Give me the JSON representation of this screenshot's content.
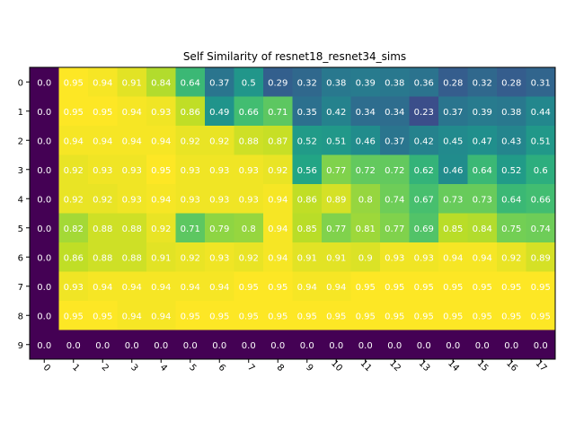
{
  "chart_data": {
    "type": "heatmap",
    "title": "Self Similarity of resnet18_resnet34_sims",
    "xlabel": "",
    "ylabel": "",
    "colormap": "viridis",
    "vmin": 0.0,
    "vmax": 0.95,
    "x_labels": [
      "0",
      "1",
      "2",
      "3",
      "4",
      "5",
      "6",
      "7",
      "8",
      "9",
      "10",
      "11",
      "12",
      "13",
      "14",
      "15",
      "16",
      "17"
    ],
    "y_labels": [
      "0",
      "1",
      "2",
      "3",
      "4",
      "5",
      "6",
      "7",
      "8",
      "9"
    ],
    "x_tick_rotation": 45,
    "grid": false,
    "values": [
      [
        0.0,
        0.95,
        0.94,
        0.91,
        0.84,
        0.64,
        0.37,
        0.5,
        0.29,
        0.32,
        0.38,
        0.39,
        0.38,
        0.36,
        0.28,
        0.32,
        0.28,
        0.31
      ],
      [
        0.0,
        0.95,
        0.95,
        0.94,
        0.93,
        0.86,
        0.49,
        0.66,
        0.71,
        0.35,
        0.42,
        0.34,
        0.34,
        0.23,
        0.37,
        0.39,
        0.38,
        0.44
      ],
      [
        0.0,
        0.94,
        0.94,
        0.94,
        0.94,
        0.92,
        0.92,
        0.88,
        0.87,
        0.52,
        0.51,
        0.46,
        0.37,
        0.42,
        0.45,
        0.47,
        0.43,
        0.51
      ],
      [
        0.0,
        0.92,
        0.93,
        0.93,
        0.95,
        0.93,
        0.93,
        0.93,
        0.92,
        0.56,
        0.77,
        0.72,
        0.72,
        0.62,
        0.46,
        0.64,
        0.52,
        0.6
      ],
      [
        0.0,
        0.92,
        0.92,
        0.93,
        0.94,
        0.93,
        0.93,
        0.93,
        0.94,
        0.86,
        0.89,
        0.8,
        0.74,
        0.67,
        0.73,
        0.73,
        0.64,
        0.66
      ],
      [
        0.0,
        0.82,
        0.88,
        0.88,
        0.92,
        0.71,
        0.79,
        0.8,
        0.94,
        0.85,
        0.77,
        0.81,
        0.77,
        0.69,
        0.85,
        0.84,
        0.75,
        0.74
      ],
      [
        0.0,
        0.86,
        0.88,
        0.88,
        0.91,
        0.92,
        0.93,
        0.92,
        0.94,
        0.91,
        0.91,
        0.9,
        0.93,
        0.93,
        0.94,
        0.94,
        0.92,
        0.89
      ],
      [
        0.0,
        0.93,
        0.94,
        0.94,
        0.94,
        0.94,
        0.94,
        0.95,
        0.95,
        0.94,
        0.94,
        0.95,
        0.95,
        0.95,
        0.95,
        0.95,
        0.95,
        0.95
      ],
      [
        0.0,
        0.95,
        0.95,
        0.94,
        0.94,
        0.95,
        0.95,
        0.95,
        0.95,
        0.95,
        0.95,
        0.95,
        0.95,
        0.95,
        0.95,
        0.95,
        0.95,
        0.95
      ],
      [
        0.0,
        0.0,
        0.0,
        0.0,
        0.0,
        0.0,
        0.0,
        0.0,
        0.0,
        0.0,
        0.0,
        0.0,
        0.0,
        0.0,
        0.0,
        0.0,
        0.0,
        0.0
      ]
    ],
    "cell_text": [
      [
        "0.0",
        "0.95",
        "0.94",
        "0.91",
        "0.84",
        "0.64",
        "0.37",
        "0.5",
        "0.29",
        "0.32",
        "0.38",
        "0.39",
        "0.38",
        "0.36",
        "0.28",
        "0.32",
        "0.28",
        "0.31"
      ],
      [
        "0.0",
        "0.95",
        "0.95",
        "0.94",
        "0.93",
        "0.86",
        "0.49",
        "0.66",
        "0.71",
        "0.35",
        "0.42",
        "0.34",
        "0.34",
        "0.23",
        "0.37",
        "0.39",
        "0.38",
        "0.44"
      ],
      [
        "0.0",
        "0.94",
        "0.94",
        "0.94",
        "0.94",
        "0.92",
        "0.92",
        "0.88",
        "0.87",
        "0.52",
        "0.51",
        "0.46",
        "0.37",
        "0.42",
        "0.45",
        "0.47",
        "0.43",
        "0.51"
      ],
      [
        "0.0",
        "0.92",
        "0.93",
        "0.93",
        "0.95",
        "0.93",
        "0.93",
        "0.93",
        "0.92",
        "0.56",
        "0.77",
        "0.72",
        "0.72",
        "0.62",
        "0.46",
        "0.64",
        "0.52",
        "0.6"
      ],
      [
        "0.0",
        "0.92",
        "0.92",
        "0.93",
        "0.94",
        "0.93",
        "0.93",
        "0.93",
        "0.94",
        "0.86",
        "0.89",
        "0.8",
        "0.74",
        "0.67",
        "0.73",
        "0.73",
        "0.64",
        "0.66"
      ],
      [
        "0.0",
        "0.82",
        "0.88",
        "0.88",
        "0.92",
        "0.71",
        "0.79",
        "0.8",
        "0.94",
        "0.85",
        "0.77",
        "0.81",
        "0.77",
        "0.69",
        "0.85",
        "0.84",
        "0.75",
        "0.74"
      ],
      [
        "0.0",
        "0.86",
        "0.88",
        "0.88",
        "0.91",
        "0.92",
        "0.93",
        "0.92",
        "0.94",
        "0.91",
        "0.91",
        "0.9",
        "0.93",
        "0.93",
        "0.94",
        "0.94",
        "0.92",
        "0.89"
      ],
      [
        "0.0",
        "0.93",
        "0.94",
        "0.94",
        "0.94",
        "0.94",
        "0.94",
        "0.95",
        "0.95",
        "0.94",
        "0.94",
        "0.95",
        "0.95",
        "0.95",
        "0.95",
        "0.95",
        "0.95",
        "0.95"
      ],
      [
        "0.0",
        "0.95",
        "0.95",
        "0.94",
        "0.94",
        "0.95",
        "0.95",
        "0.95",
        "0.95",
        "0.95",
        "0.95",
        "0.95",
        "0.95",
        "0.95",
        "0.95",
        "0.95",
        "0.95",
        "0.95"
      ],
      [
        "0.0",
        "0.0",
        "0.0",
        "0.0",
        "0.0",
        "0.0",
        "0.0",
        "0.0",
        "0.0",
        "0.0",
        "0.0",
        "0.0",
        "0.0",
        "0.0",
        "0.0",
        "0.0",
        "0.0",
        "0.0"
      ]
    ],
    "cell_text_color": "#ffffff",
    "axis_color": "#000000"
  }
}
